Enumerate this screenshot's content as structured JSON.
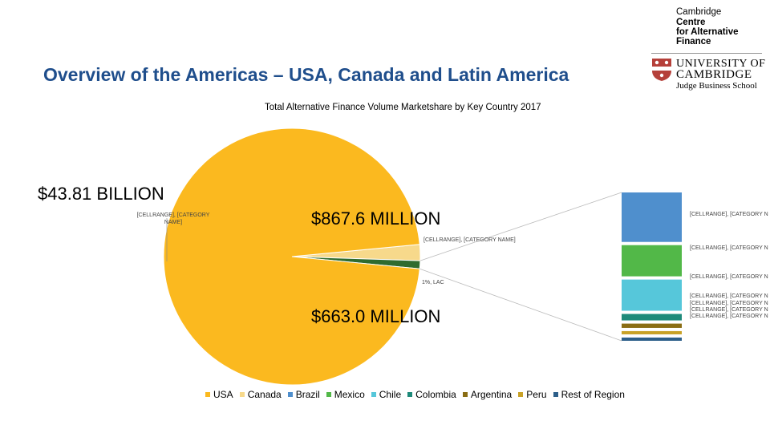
{
  "page": {
    "title": "Overview of the Americas – USA, Canada and Latin America"
  },
  "logo": {
    "centre_line1": "Cambridge",
    "centre_line2": "Centre",
    "centre_line3": "for Alternative",
    "centre_line4": "Finance",
    "uni_line1": "UNIVERSITY OF",
    "uni_line2": "CAMBRIDGE",
    "uni_line3": "Judge Business School",
    "crest_color": "#b5403a"
  },
  "chart_data": {
    "type": "pie",
    "title": "Total Alternative Finance Volume Marketshare by Key Country 2017",
    "pie": {
      "categories": [
        "USA",
        "Canada",
        "LAC"
      ],
      "values": [
        96,
        2,
        1
      ],
      "colors": [
        "#fbb91f",
        "#f7d98b",
        "#2f6b2f"
      ]
    },
    "bar_of_pie": {
      "categories": [
        "Brazil",
        "Mexico",
        "Chile",
        "Colombia",
        "Argentina",
        "Peru",
        "Rest of Region"
      ],
      "values": [
        46,
        29,
        29,
        6,
        4,
        3,
        3
      ],
      "colors": [
        "#4f8fcd",
        "#52b848",
        "#56c7da",
        "#1e8a7a",
        "#8a6d14",
        "#c9a227",
        "#2d5f8a"
      ]
    },
    "annotations": {
      "usa": "$43.81 BILLION",
      "canada": "$867.6 MILLION",
      "lac": "$663.0 MILLION"
    },
    "data_labels": {
      "usa": "[CELLRANGE], [CATEGORY NAME]",
      "canada": "[CELLRANGE], [CATEGORY NAME]",
      "lac": "1%, LAC",
      "bar": [
        "[CELLRANGE], [CATEGORY N",
        "[CELLRANGE], [CATEGORY N",
        "[CELLRANGE], [CATEGORY N",
        "[CELLRANGE], [CATEGORY N",
        "[CELLRANGE], [CATEGORY N",
        "[CELLRANGE], [CATEGORY N",
        "[CELLRANGE], [CATEGORY N"
      ]
    },
    "legend": [
      {
        "name": "USA",
        "color": "#fbb91f"
      },
      {
        "name": "Canada",
        "color": "#f7d98b"
      },
      {
        "name": "Brazil",
        "color": "#4f8fcd"
      },
      {
        "name": "Mexico",
        "color": "#52b848"
      },
      {
        "name": "Chile",
        "color": "#56c7da"
      },
      {
        "name": "Colombia",
        "color": "#1e8a7a"
      },
      {
        "name": "Argentina",
        "color": "#8a6d14"
      },
      {
        "name": "Peru",
        "color": "#c9a227"
      },
      {
        "name": "Rest of Region",
        "color": "#2d5f8a"
      }
    ]
  }
}
